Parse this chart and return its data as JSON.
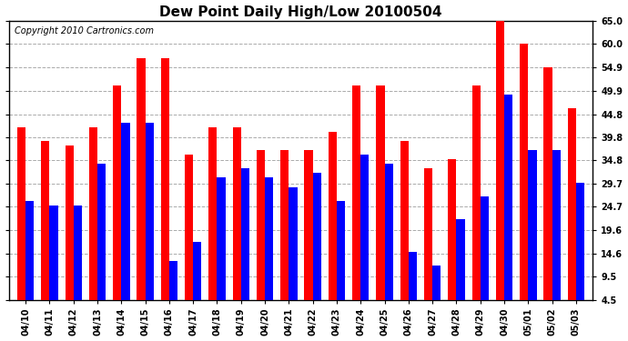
{
  "title": "Dew Point Daily High/Low 20100504",
  "copyright": "Copyright 2010 Cartronics.com",
  "dates": [
    "04/10",
    "04/11",
    "04/12",
    "04/13",
    "04/14",
    "04/15",
    "04/16",
    "04/17",
    "04/18",
    "04/19",
    "04/20",
    "04/21",
    "04/22",
    "04/23",
    "04/24",
    "04/25",
    "04/26",
    "04/27",
    "04/28",
    "04/29",
    "04/30",
    "05/01",
    "05/02",
    "05/03"
  ],
  "highs": [
    42.0,
    39.0,
    38.0,
    42.0,
    51.0,
    57.0,
    57.0,
    36.0,
    42.0,
    42.0,
    37.0,
    37.0,
    37.0,
    41.0,
    51.0,
    51.0,
    39.0,
    33.0,
    35.0,
    51.0,
    65.0,
    60.0,
    55.0,
    46.0
  ],
  "lows": [
    26.0,
    25.0,
    25.0,
    34.0,
    43.0,
    43.0,
    13.0,
    17.0,
    31.0,
    33.0,
    31.0,
    29.0,
    32.0,
    26.0,
    36.0,
    34.0,
    15.0,
    12.0,
    22.0,
    27.0,
    49.0,
    37.0,
    37.0,
    30.0
  ],
  "high_color": "#ff0000",
  "low_color": "#0000ff",
  "bg_color": "#ffffff",
  "grid_color": "#aaaaaa",
  "ymin": 4.5,
  "ymax": 65.0,
  "yticks": [
    4.5,
    9.5,
    14.6,
    19.6,
    24.7,
    29.7,
    34.8,
    39.8,
    44.8,
    49.9,
    54.9,
    60.0,
    65.0
  ],
  "title_fontsize": 11,
  "tick_fontsize": 7,
  "copyright_fontsize": 7,
  "bar_width": 0.35
}
